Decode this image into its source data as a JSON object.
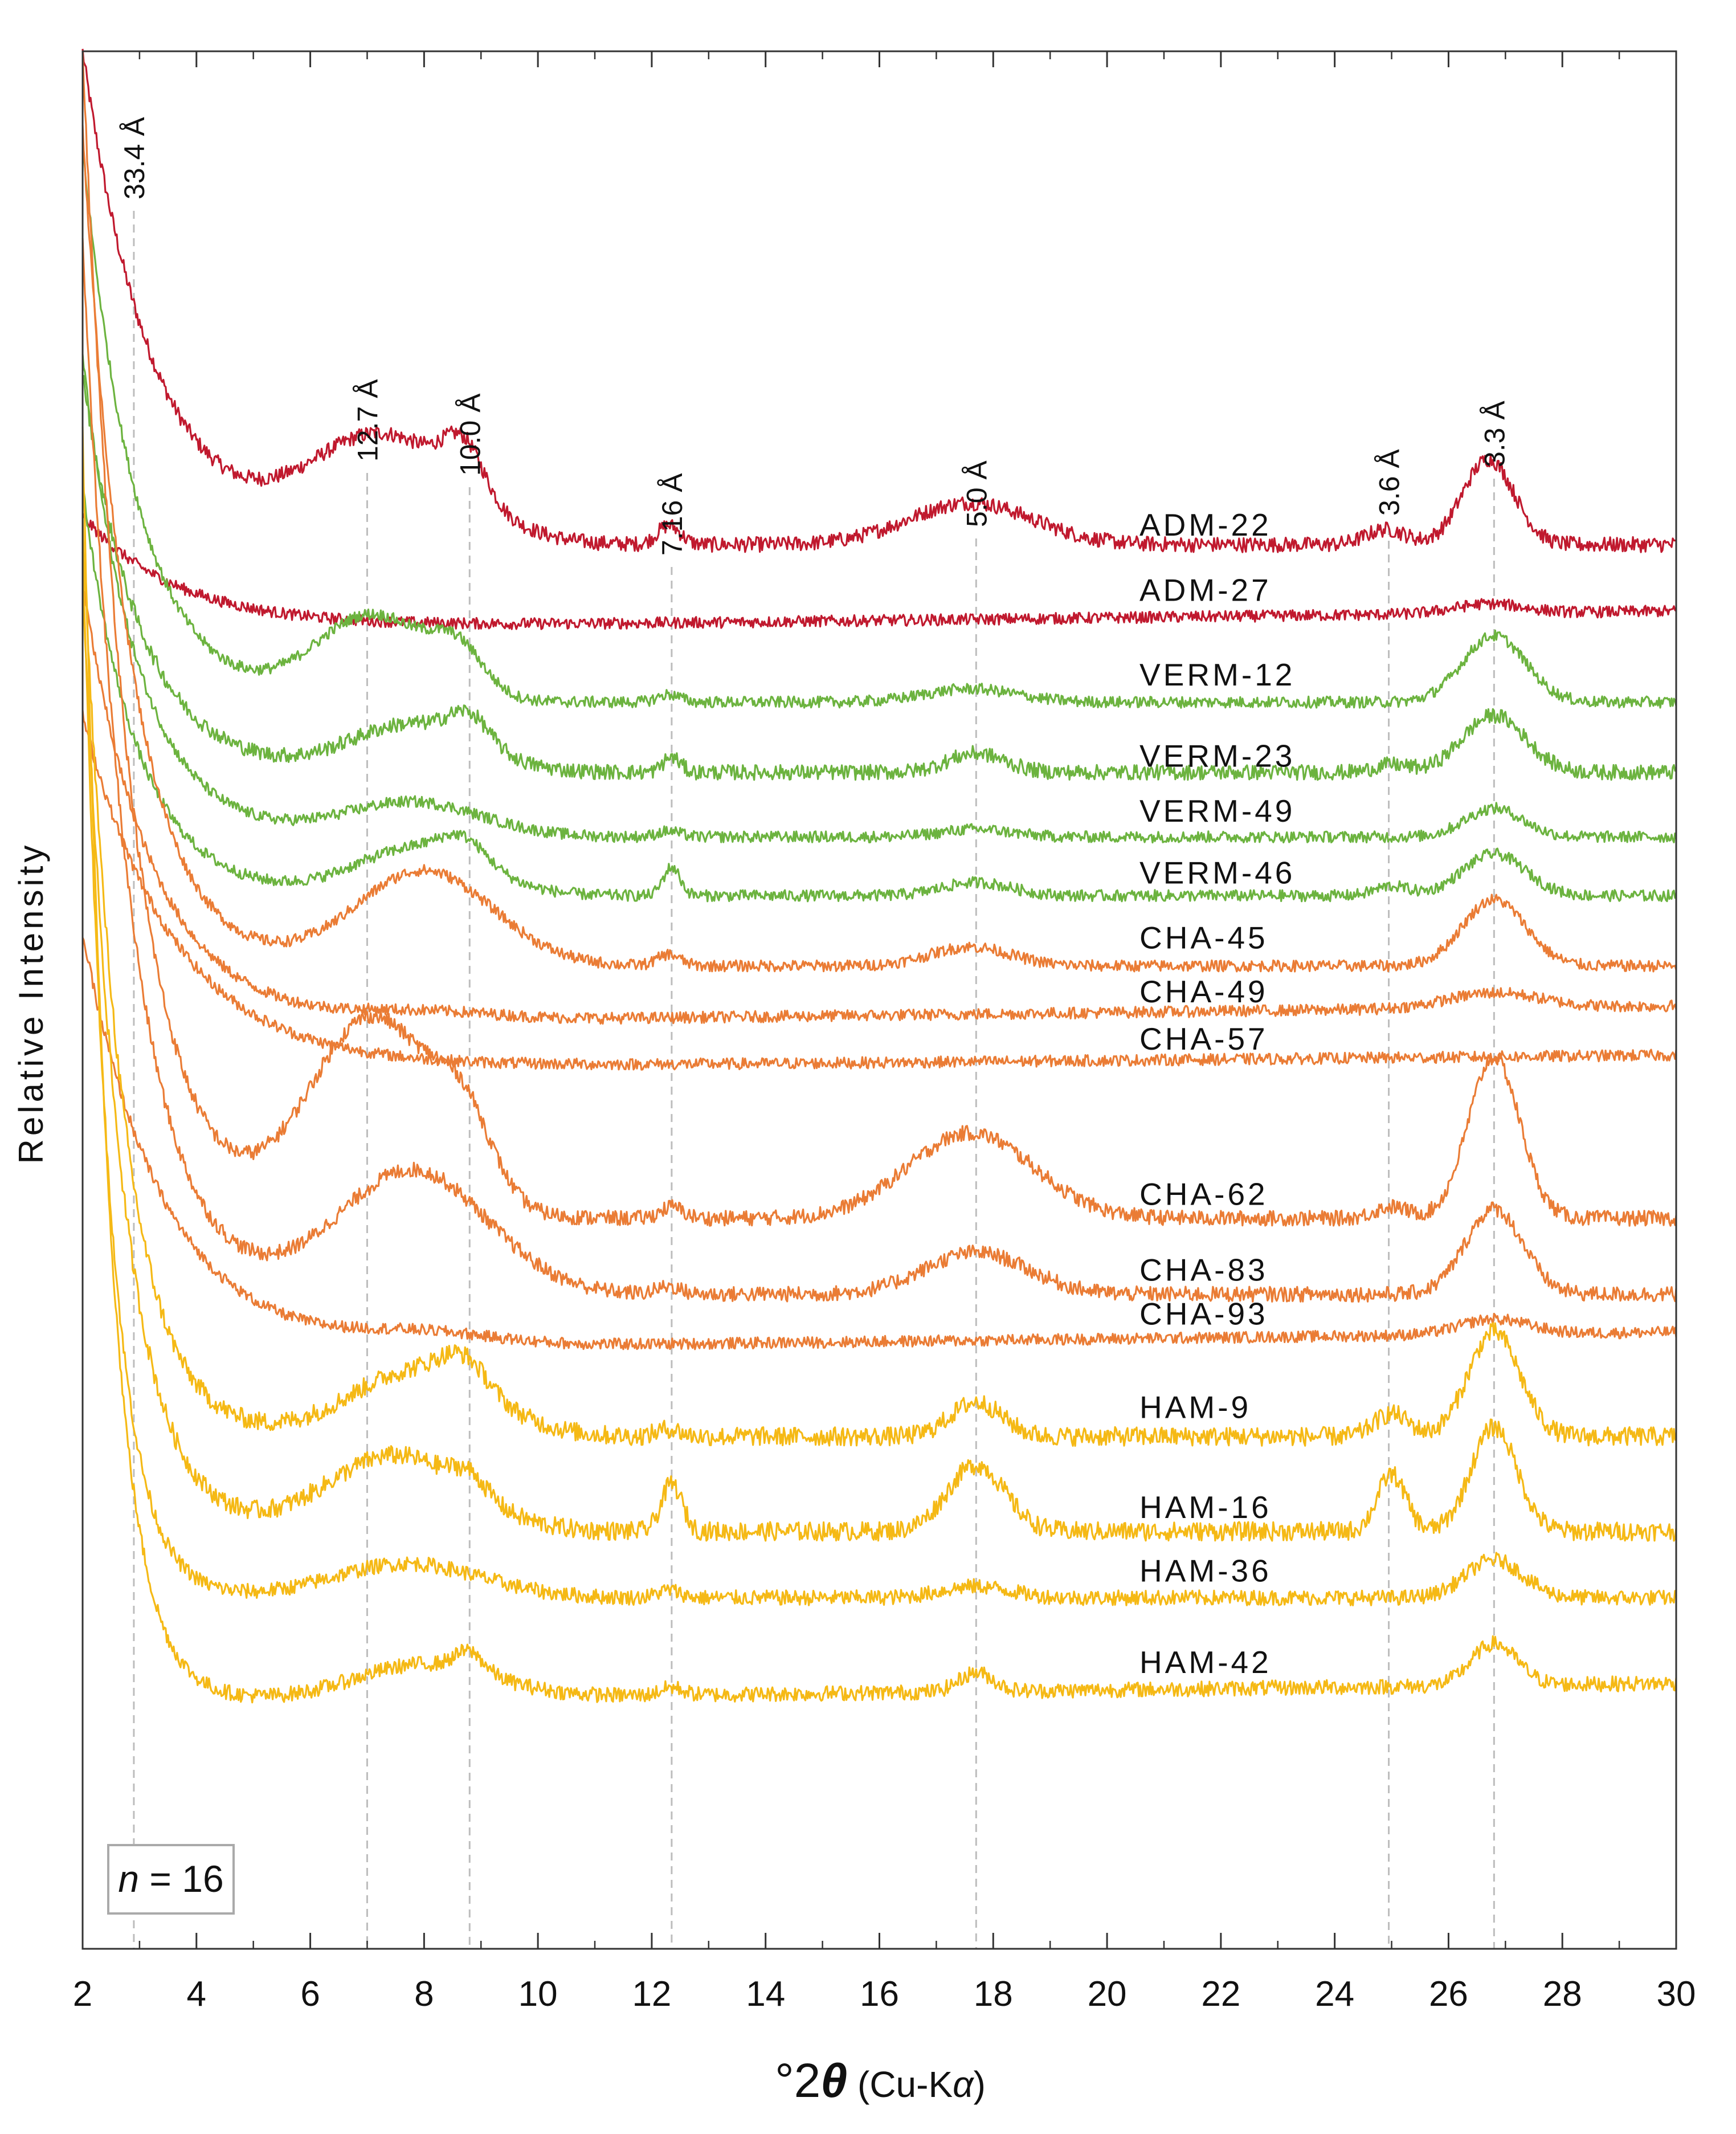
{
  "chart_data": {
    "type": "line",
    "title": "",
    "xlabel": "°2θ (Cu-Kα)",
    "xlabel_parts": {
      "prefix": "°2",
      "theta": "θ",
      "paren_open": " (Cu-K",
      "alpha": "α",
      "paren_close": ")"
    },
    "ylabel": "Relative Intensity",
    "xlim": [
      2,
      30
    ],
    "x_ticks": [
      2,
      4,
      6,
      8,
      10,
      12,
      14,
      16,
      18,
      20,
      22,
      24,
      26,
      28,
      30
    ],
    "x_tick_labels": [
      "2",
      "4",
      "6",
      "8",
      "10",
      "12",
      "14",
      "16",
      "18",
      "20",
      "22",
      "24",
      "26",
      "28",
      "30"
    ],
    "y_ticks_shown": false,
    "annotation": {
      "text_italic": "n",
      "text_rest": " = 16"
    },
    "reference_lines": [
      {
        "x": 2.9,
        "label": "33.4 Å"
      },
      {
        "x": 7.0,
        "label": "12.7 Å"
      },
      {
        "x": 8.8,
        "label": "10.0 Å"
      },
      {
        "x": 12.35,
        "label": "7.16 Å"
      },
      {
        "x": 17.7,
        "label": "5.0 Å"
      },
      {
        "x": 24.95,
        "label": "3.6 Å"
      },
      {
        "x": 26.8,
        "label": "3.3 Å"
      }
    ],
    "colors": {
      "ADM": "#c0192e",
      "VERM": "#6cb33f",
      "CHA": "#ea7c35",
      "HAM": "#f5b915"
    },
    "series": [
      {
        "name": "ADM-22",
        "group": "ADM",
        "baseline": 0.74,
        "start": 1.0,
        "decay": 1.25,
        "noise": 0.004,
        "tail_slope": 0.0,
        "peaks": [
          [
            7.3,
            0.055,
            1.3
          ],
          [
            8.7,
            0.025,
            0.35
          ],
          [
            12.3,
            0.01,
            0.2
          ],
          [
            17.6,
            0.022,
            1.1
          ],
          [
            24.9,
            0.008,
            0.35
          ],
          [
            26.7,
            0.045,
            0.45
          ]
        ]
      },
      {
        "name": "ADM-27",
        "group": "ADM",
        "baseline": 0.695,
        "start": 0.755,
        "decay": 1.7,
        "noise": 0.003,
        "tail_slope": 0.01,
        "peaks": [
          [
            26.7,
            0.005,
            0.6
          ]
        ]
      },
      {
        "name": "VERM-12",
        "group": "VERM",
        "baseline": 0.657,
        "start": 0.95,
        "decay": 0.95,
        "noise": 0.003,
        "tail_slope": 0.0,
        "peaks": [
          [
            7.1,
            0.045,
            1.0
          ],
          [
            8.6,
            0.02,
            0.45
          ],
          [
            12.3,
            0.004,
            0.2
          ],
          [
            17.6,
            0.007,
            0.8
          ],
          [
            26.8,
            0.035,
            0.55
          ]
        ]
      },
      {
        "name": "VERM-23",
        "group": "VERM",
        "baseline": 0.62,
        "start": 0.83,
        "decay": 1.0,
        "noise": 0.004,
        "tail_slope": 0.0,
        "peaks": [
          [
            7.8,
            0.025,
            1.1
          ],
          [
            8.8,
            0.015,
            0.35
          ],
          [
            12.35,
            0.008,
            0.15
          ],
          [
            17.7,
            0.01,
            0.5
          ],
          [
            25.0,
            0.004,
            0.3
          ],
          [
            26.8,
            0.03,
            0.55
          ]
        ]
      },
      {
        "name": "VERM-49",
        "group": "VERM",
        "baseline": 0.586,
        "start": 0.84,
        "decay": 0.95,
        "noise": 0.003,
        "tail_slope": 0.0,
        "peaks": [
          [
            7.8,
            0.018,
            1.2
          ],
          [
            12.3,
            0.003,
            0.2
          ],
          [
            17.7,
            0.004,
            0.6
          ],
          [
            26.8,
            0.015,
            0.5
          ]
        ]
      },
      {
        "name": "VERM-46",
        "group": "VERM",
        "baseline": 0.555,
        "start": 0.77,
        "decay": 0.95,
        "noise": 0.003,
        "tail_slope": 0.0,
        "peaks": [
          [
            7.9,
            0.025,
            1.1
          ],
          [
            8.7,
            0.012,
            0.4
          ],
          [
            12.35,
            0.015,
            0.15
          ],
          [
            17.7,
            0.007,
            0.6
          ],
          [
            25.0,
            0.005,
            0.3
          ],
          [
            26.8,
            0.022,
            0.55
          ]
        ]
      },
      {
        "name": "CHA-45",
        "group": "CHA",
        "baseline": 0.518,
        "start": 0.96,
        "decay": 0.85,
        "noise": 0.003,
        "tail_slope": 0.0,
        "peaks": [
          [
            8.0,
            0.05,
            1.2
          ],
          [
            12.3,
            0.006,
            0.2
          ],
          [
            17.6,
            0.01,
            0.7
          ],
          [
            26.8,
            0.035,
            0.55
          ]
        ]
      },
      {
        "name": "CHA-49",
        "group": "CHA",
        "baseline": 0.487,
        "start": 0.72,
        "decay": 1.2,
        "noise": 0.003,
        "tail_slope": 0.01,
        "peaks": [
          [
            8.0,
            0.004,
            1.2
          ],
          [
            26.8,
            0.008,
            0.8
          ]
        ]
      },
      {
        "name": "CHA-57",
        "group": "CHA",
        "baseline": 0.463,
        "start": 0.65,
        "decay": 1.6,
        "noise": 0.003,
        "tail_slope": 0.008,
        "peaks": []
      },
      {
        "name": "CHA-62",
        "group": "CHA",
        "baseline": 0.385,
        "start": 1.0,
        "decay": 0.85,
        "noise": 0.004,
        "tail_slope": 0.0,
        "peaks": [
          [
            7.1,
            0.105,
            1.1
          ],
          [
            8.7,
            0.035,
            0.5
          ],
          [
            12.35,
            0.006,
            0.2
          ],
          [
            17.6,
            0.045,
            1.1
          ],
          [
            25.0,
            0.006,
            0.3
          ],
          [
            26.8,
            0.085,
            0.45
          ]
        ]
      },
      {
        "name": "CHA-83",
        "group": "CHA",
        "baseline": 0.345,
        "start": 0.9,
        "decay": 0.85,
        "noise": 0.004,
        "tail_slope": 0.0,
        "peaks": [
          [
            7.8,
            0.065,
            1.3
          ],
          [
            12.3,
            0.004,
            0.2
          ],
          [
            17.7,
            0.022,
            0.9
          ],
          [
            26.8,
            0.045,
            0.5
          ]
        ]
      },
      {
        "name": "CHA-93",
        "group": "CHA",
        "baseline": 0.315,
        "start": 0.535,
        "decay": 1.4,
        "noise": 0.003,
        "tail_slope": 0.01,
        "peaks": [
          [
            8.0,
            0.006,
            1.2
          ],
          [
            26.8,
            0.008,
            0.6
          ]
        ]
      },
      {
        "name": "HAM-9",
        "group": "HAM",
        "baseline": 0.27,
        "start": 0.75,
        "decay": 0.7,
        "noise": 0.005,
        "tail_slope": 0.0,
        "peaks": [
          [
            7.9,
            0.035,
            1.2
          ],
          [
            8.7,
            0.015,
            0.4
          ],
          [
            12.3,
            0.004,
            0.2
          ],
          [
            17.7,
            0.018,
            0.45
          ],
          [
            25.0,
            0.012,
            0.3
          ],
          [
            26.8,
            0.055,
            0.45
          ]
        ]
      },
      {
        "name": "HAM-16",
        "group": "HAM",
        "baseline": 0.22,
        "start": 0.72,
        "decay": 0.7,
        "noise": 0.005,
        "tail_slope": 0.0,
        "peaks": [
          [
            7.5,
            0.04,
            1.2
          ],
          [
            8.8,
            0.01,
            0.3
          ],
          [
            12.35,
            0.025,
            0.18
          ],
          [
            17.7,
            0.035,
            0.5
          ],
          [
            25.0,
            0.03,
            0.25
          ],
          [
            26.8,
            0.055,
            0.4
          ]
        ]
      },
      {
        "name": "HAM-36",
        "group": "HAM",
        "baseline": 0.185,
        "start": 0.74,
        "decay": 0.5,
        "noise": 0.004,
        "tail_slope": 0.0,
        "peaks": [
          [
            7.7,
            0.018,
            1.3
          ],
          [
            12.3,
            0.004,
            0.2
          ],
          [
            17.7,
            0.006,
            0.6
          ],
          [
            26.8,
            0.02,
            0.5
          ]
        ]
      },
      {
        "name": "HAM-42",
        "group": "HAM",
        "baseline": 0.13,
        "start": 0.8,
        "decay": 0.5,
        "noise": 0.004,
        "tail_slope": 0.01,
        "peaks": [
          [
            8.0,
            0.018,
            1.2
          ],
          [
            8.8,
            0.01,
            0.25
          ],
          [
            12.35,
            0.004,
            0.2
          ],
          [
            17.7,
            0.01,
            0.3
          ],
          [
            26.8,
            0.022,
            0.4
          ]
        ]
      }
    ]
  }
}
